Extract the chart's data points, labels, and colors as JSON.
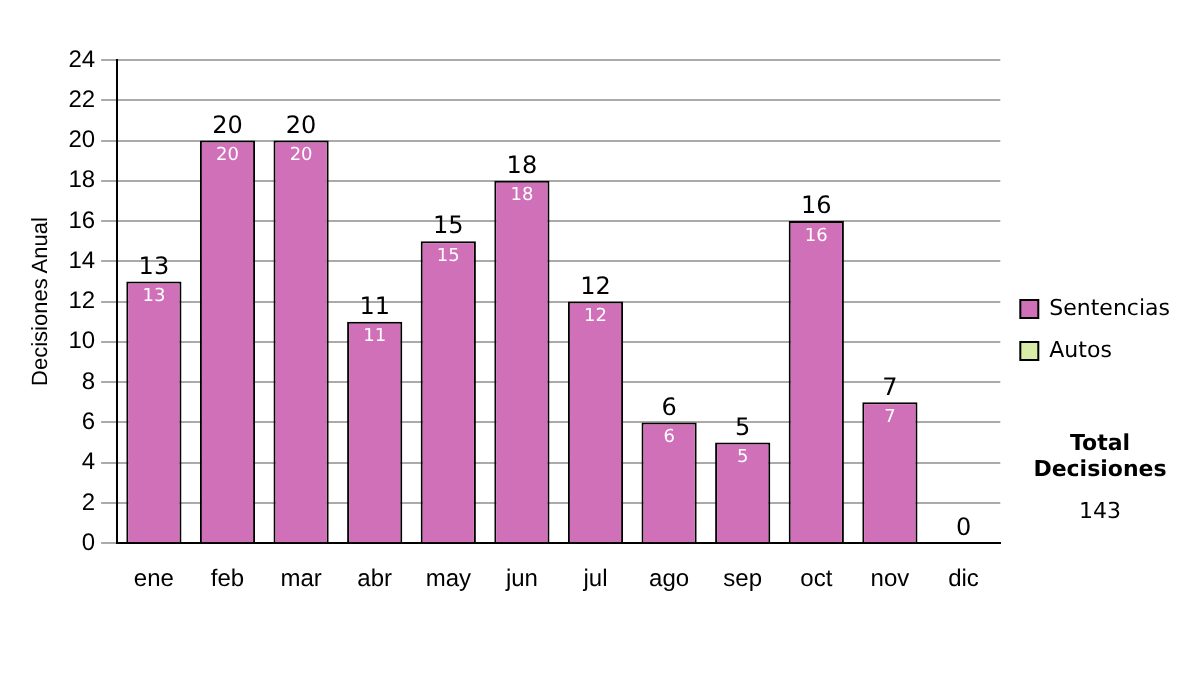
{
  "chart_data": {
    "type": "bar",
    "ylabel": "Decisiones Anual",
    "categories": [
      "ene",
      "feb",
      "mar",
      "abr",
      "may",
      "jun",
      "jul",
      "ago",
      "sep",
      "oct",
      "nov",
      "dic"
    ],
    "series": [
      {
        "name": "Sentencias",
        "color": "#d070b8",
        "values": [
          13,
          20,
          20,
          11,
          15,
          18,
          12,
          6,
          5,
          16,
          7,
          0
        ],
        "value_labels": [
          "13",
          "20",
          "20",
          "11",
          "15",
          "18",
          "12",
          "6",
          "5",
          "16",
          "7",
          null
        ]
      },
      {
        "name": "Autos",
        "color": "#d8eca8",
        "values": [
          0,
          0,
          0,
          0,
          0,
          0,
          0,
          0,
          0,
          0,
          0,
          0
        ]
      }
    ],
    "stacked": true,
    "totals": [
      "13",
      "20",
      "20",
      "11",
      "15",
      "18",
      "12",
      "6",
      "5",
      "16",
      "7",
      "0"
    ],
    "ylim": [
      0,
      24
    ],
    "yticks": [
      0,
      2,
      4,
      6,
      8,
      10,
      12,
      14,
      16,
      18,
      20,
      22,
      24
    ],
    "grid": "y",
    "legend": "right",
    "annotations": [
      "Total Decisiones",
      "143"
    ]
  }
}
